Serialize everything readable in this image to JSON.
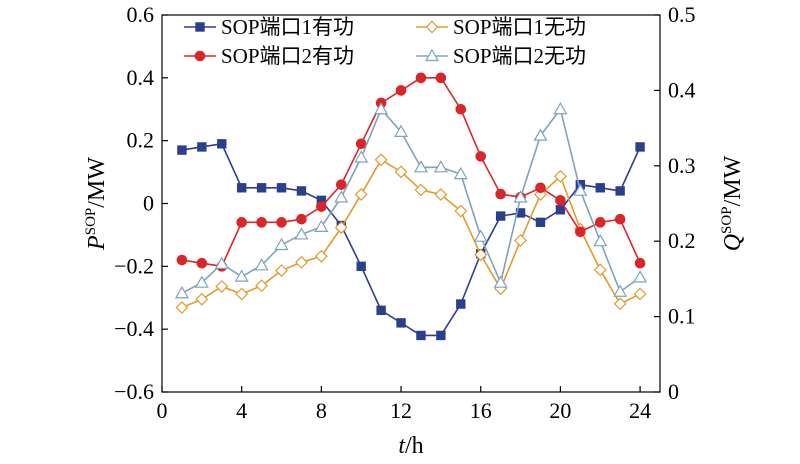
{
  "chart_data": {
    "type": "line",
    "x": [
      1,
      2,
      3,
      4,
      5,
      6,
      7,
      8,
      9,
      10,
      11,
      12,
      13,
      14,
      15,
      16,
      17,
      18,
      19,
      20,
      21,
      22,
      23,
      24
    ],
    "xlim": [
      0,
      25
    ],
    "x_ticks": [
      0,
      4,
      8,
      12,
      16,
      20,
      24
    ],
    "xlabel": "t/h",
    "ylabel_left": "P^SOP/MW",
    "ylim_left": [
      -0.6,
      0.6
    ],
    "y_ticks_left": [
      -0.6,
      -0.4,
      -0.2,
      0,
      0.2,
      0.4,
      0.6
    ],
    "ylabel_right": "Q^SOP/MW",
    "ylim_right": [
      0,
      0.5
    ],
    "y_ticks_right": [
      0,
      0.1,
      0.2,
      0.3,
      0.4,
      0.5
    ],
    "grid": false,
    "legend_position": "top",
    "series": [
      {
        "name": "SOP端口1有功",
        "axis": "left",
        "color": "#2b3f8c",
        "marker": "square-filled",
        "values": [
          0.17,
          0.18,
          0.19,
          0.05,
          0.05,
          0.05,
          0.04,
          0.01,
          -0.07,
          -0.2,
          -0.34,
          -0.38,
          -0.42,
          -0.42,
          -0.32,
          -0.16,
          -0.04,
          -0.03,
          -0.06,
          -0.02,
          0.06,
          0.05,
          0.04,
          0.18
        ]
      },
      {
        "name": "SOP端口1无功",
        "axis": "right",
        "color": "#e39a2d",
        "marker": "diamond-open",
        "values": [
          0.112,
          0.123,
          0.14,
          0.13,
          0.141,
          0.161,
          0.172,
          0.18,
          0.218,
          0.262,
          0.308,
          0.292,
          0.268,
          0.262,
          0.24,
          0.182,
          0.137,
          0.201,
          0.262,
          0.286,
          0.216,
          0.162,
          0.117,
          0.13
        ]
      },
      {
        "name": "SOP端口2有功",
        "axis": "left",
        "color": "#d9262b",
        "marker": "circle-filled",
        "values": [
          -0.18,
          -0.19,
          -0.2,
          -0.06,
          -0.06,
          -0.06,
          -0.05,
          -0.01,
          0.06,
          0.19,
          0.32,
          0.36,
          0.4,
          0.4,
          0.3,
          0.15,
          0.03,
          0.02,
          0.05,
          0.01,
          -0.09,
          -0.06,
          -0.05,
          -0.19
        ]
      },
      {
        "name": "SOP端口2无功",
        "axis": "right",
        "color": "#7fa3bd",
        "marker": "triangle-open",
        "values": [
          0.131,
          0.145,
          0.17,
          0.153,
          0.168,
          0.195,
          0.209,
          0.219,
          0.258,
          0.311,
          0.375,
          0.345,
          0.298,
          0.298,
          0.289,
          0.206,
          0.145,
          0.258,
          0.34,
          0.375,
          0.267,
          0.2,
          0.133,
          0.152
        ]
      }
    ]
  }
}
